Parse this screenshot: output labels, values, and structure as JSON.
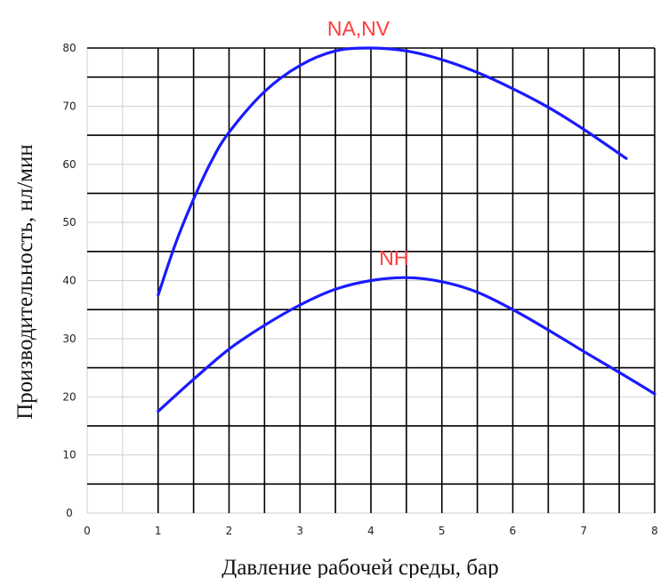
{
  "colors": {
    "line": "#1a1aff",
    "label": "#ff3b3b",
    "grid_major": "#000000",
    "grid_minor": "#cfcfcf"
  },
  "chart_data": {
    "type": "line",
    "xlabel": "Давление рабочей среды, бар",
    "ylabel": "Производительность, нл/мин",
    "xlim": [
      0,
      8
    ],
    "ylim": [
      0,
      80
    ],
    "x_ticks": [
      "0",
      "1",
      "2",
      "3",
      "4",
      "5",
      "6",
      "7",
      "8"
    ],
    "y_ticks": [
      "0",
      "10",
      "20",
      "30",
      "40",
      "50",
      "60",
      "70",
      "80"
    ],
    "grid": true,
    "series": [
      {
        "name": "NA,NV",
        "x": [
          1.0,
          1.25,
          1.5,
          1.75,
          2.0,
          2.5,
          3.0,
          3.5,
          4.0,
          4.5,
          5.0,
          5.5,
          6.0,
          6.5,
          7.0,
          7.6
        ],
        "y": [
          37.5,
          46.5,
          54.0,
          60.5,
          65.5,
          72.5,
          77.0,
          79.5,
          80.0,
          79.5,
          78.0,
          75.8,
          73.0,
          69.8,
          66.0,
          61.0
        ]
      },
      {
        "name": "NH",
        "x": [
          1.0,
          1.5,
          2.0,
          2.5,
          3.0,
          3.5,
          4.0,
          4.5,
          5.0,
          5.5,
          6.0,
          6.5,
          7.0,
          7.5,
          8.0
        ],
        "y": [
          17.5,
          23.0,
          28.2,
          32.3,
          35.8,
          38.5,
          40.0,
          40.5,
          39.8,
          38.0,
          35.0,
          31.5,
          27.8,
          24.2,
          20.5
        ]
      }
    ]
  }
}
